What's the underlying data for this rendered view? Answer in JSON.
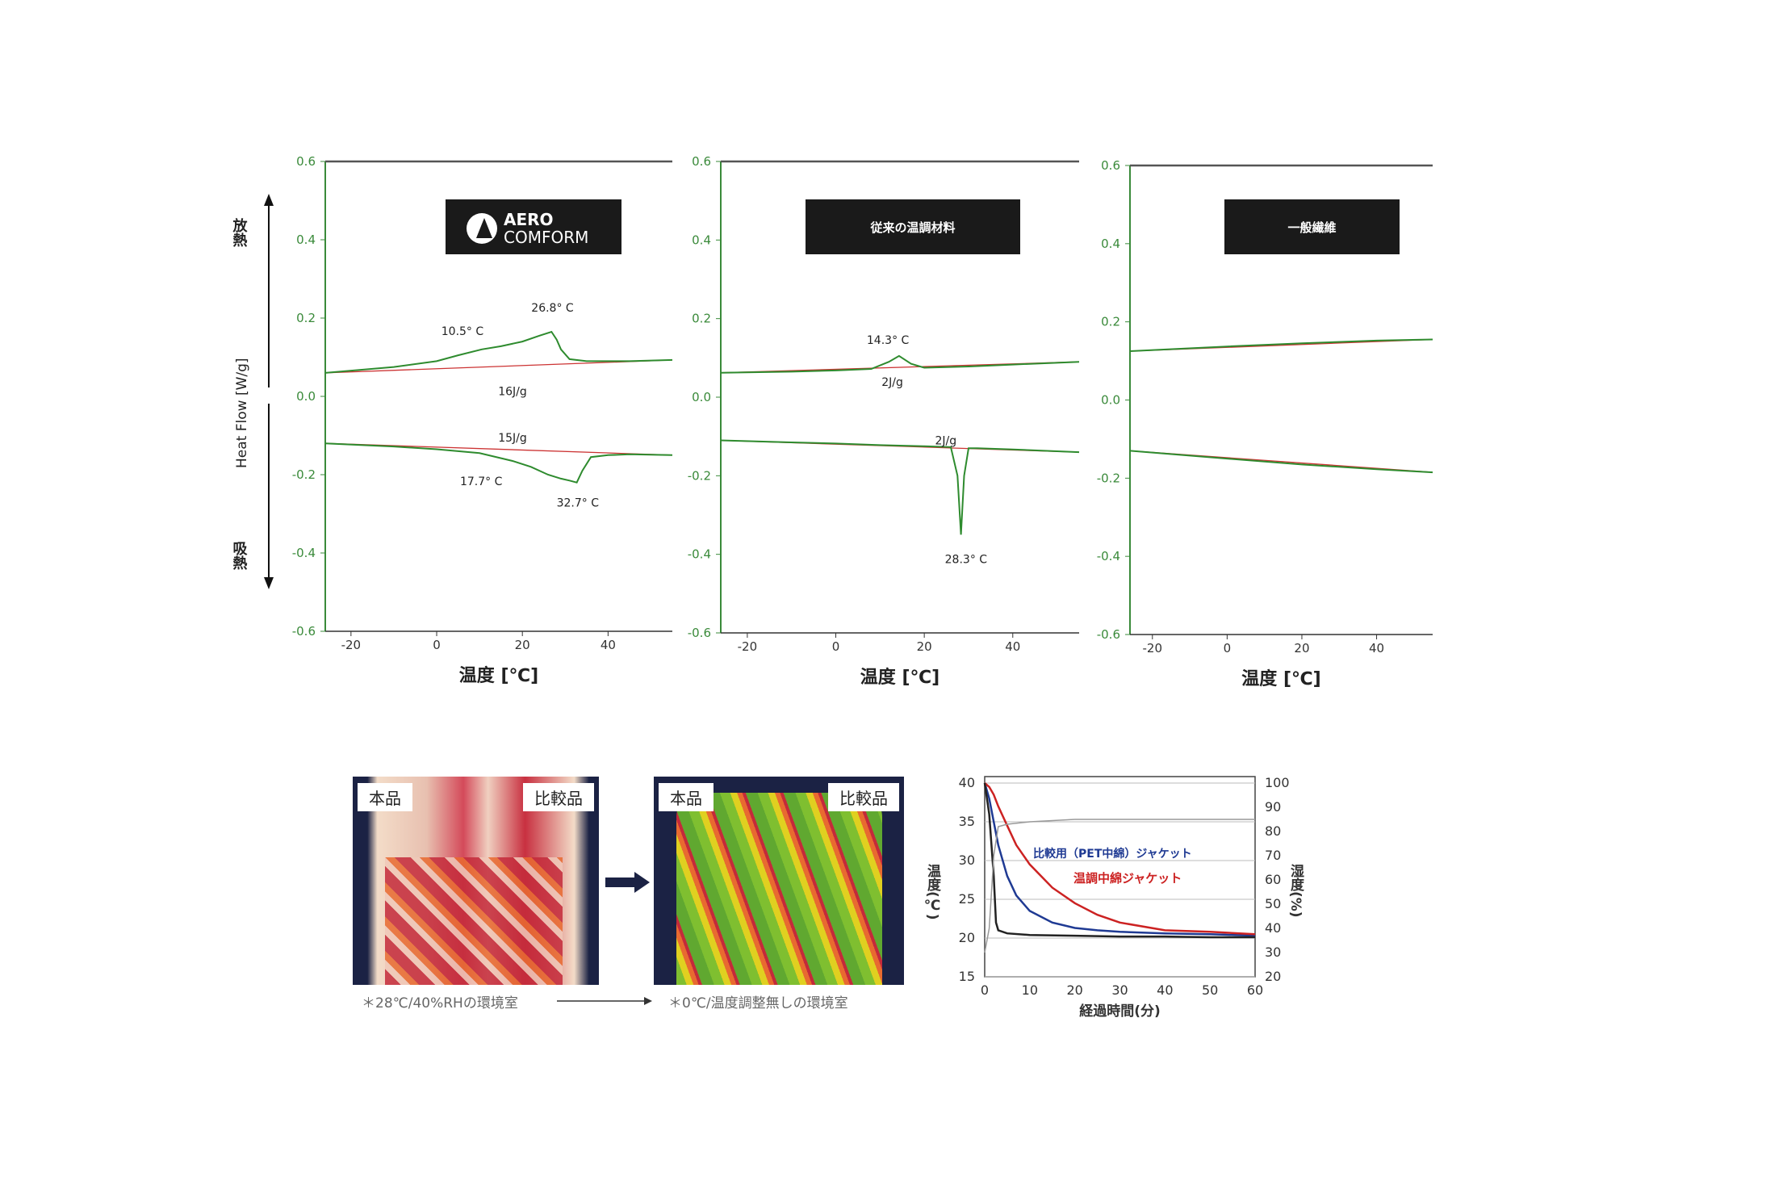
{
  "dsc": {
    "ylabel": "Heat Flow [W/g]",
    "release_label": "放熱",
    "absorb_label": "吸熱",
    "xlabel": "温度 [℃]",
    "yticks": [
      "0.6",
      "0.4",
      "0.2",
      "0.0",
      "-0.2",
      "-0.4",
      "-0.6"
    ],
    "xticks": [
      "-20",
      "0",
      "20",
      "40"
    ],
    "colors": {
      "curve": "#2e8b2e",
      "baseline": "#cc3333",
      "axis": "#3a8a3a"
    }
  },
  "chart_data": [
    {
      "type": "line",
      "tag": "AERO COMFORM",
      "xlabel": "温度 [℃]",
      "ylabel": "Heat Flow [W/g]",
      "ylim": [
        -0.6,
        0.6
      ],
      "xlim": [
        -26,
        55
      ],
      "series": [
        {
          "role": "heating",
          "x": [
            -26,
            -10,
            0,
            5,
            10.5,
            15,
            20,
            24,
            26.8,
            28,
            29,
            31,
            35,
            40,
            45,
            55
          ],
          "y": [
            0.06,
            0.075,
            0.09,
            0.105,
            0.12,
            0.128,
            0.14,
            0.155,
            0.165,
            0.145,
            0.12,
            0.095,
            0.09,
            0.09,
            0.09,
            0.093
          ]
        },
        {
          "role": "cooling",
          "x": [
            -26,
            -10,
            0,
            10,
            17.7,
            22,
            26,
            29,
            31,
            32.7,
            34,
            36,
            40,
            45,
            55
          ],
          "y": [
            -0.12,
            -0.128,
            -0.135,
            -0.145,
            -0.165,
            -0.18,
            -0.2,
            -0.21,
            -0.215,
            -0.22,
            -0.19,
            -0.155,
            -0.15,
            -0.148,
            -0.15
          ]
        }
      ],
      "annotations": [
        "10.5° C",
        "26.8° C",
        "16J/g",
        "15J/g",
        "17.7° C",
        "32.7° C"
      ]
    },
    {
      "type": "line",
      "tag": "従来の温調材料",
      "xlabel": "温度 [℃]",
      "ylim": [
        -0.6,
        0.6
      ],
      "xlim": [
        -26,
        55
      ],
      "series": [
        {
          "role": "heating",
          "x": [
            -26,
            -10,
            0,
            8,
            12,
            14.3,
            17,
            20,
            30,
            40,
            55
          ],
          "y": [
            0.062,
            0.065,
            0.068,
            0.072,
            0.09,
            0.105,
            0.085,
            0.075,
            0.078,
            0.083,
            0.09
          ]
        },
        {
          "role": "cooling",
          "x": [
            -26,
            -10,
            0,
            10,
            20,
            26,
            27.5,
            28.3,
            29,
            30,
            32,
            40,
            55
          ],
          "y": [
            -0.11,
            -0.115,
            -0.118,
            -0.122,
            -0.125,
            -0.127,
            -0.2,
            -0.35,
            -0.2,
            -0.13,
            -0.13,
            -0.133,
            -0.14
          ]
        }
      ],
      "annotations": [
        "14.3° C",
        "2J/g",
        "2J/g",
        "28.3° C"
      ]
    },
    {
      "type": "line",
      "tag": "一般繊維",
      "xlabel": "温度 [℃]",
      "ylim": [
        -0.6,
        0.6
      ],
      "xlim": [
        -26,
        55
      ],
      "series": [
        {
          "role": "heating",
          "x": [
            -26,
            0,
            20,
            40,
            55
          ],
          "y": [
            0.125,
            0.137,
            0.145,
            0.152,
            0.155
          ]
        },
        {
          "role": "cooling",
          "x": [
            -26,
            0,
            20,
            40,
            55
          ],
          "y": [
            -0.13,
            -0.15,
            -0.165,
            -0.177,
            -0.185
          ]
        }
      ],
      "annotations": []
    },
    {
      "type": "line",
      "xlabel": "経過時間(分)",
      "ylabel": "温度(℃)",
      "y2label": "湿度(%)",
      "xlim": [
        0,
        60
      ],
      "ylim": [
        15,
        40
      ],
      "y2lim": [
        20,
        100
      ],
      "xticks": [
        "0",
        "10",
        "20",
        "30",
        "40",
        "50",
        "60"
      ],
      "yticks": [
        "40",
        "35",
        "30",
        "25",
        "20",
        "15"
      ],
      "y2ticks": [
        "100",
        "90",
        "80",
        "70",
        "60",
        "50",
        "40",
        "30",
        "20"
      ],
      "series": [
        {
          "name": "比較用（PET中綿）ジャケット",
          "color": "#1f3a93",
          "x": [
            0,
            1,
            2,
            3,
            5,
            7,
            10,
            15,
            20,
            25,
            30,
            40,
            50,
            60
          ],
          "y": [
            40,
            38,
            35,
            32,
            28,
            25.5,
            23.5,
            22,
            21.3,
            21,
            20.8,
            20.6,
            20.5,
            20.3
          ]
        },
        {
          "name": "温調中綿ジャケット",
          "color": "#cc2222",
          "x": [
            0,
            1,
            2,
            3,
            5,
            7,
            10,
            15,
            20,
            25,
            30,
            40,
            50,
            60
          ],
          "y": [
            40,
            39.5,
            38.5,
            37,
            34.5,
            32,
            29.5,
            26.5,
            24.5,
            23,
            22,
            21,
            20.8,
            20.5
          ]
        },
        {
          "color": "#222222",
          "x": [
            0,
            1,
            2,
            2.5,
            3,
            5,
            10,
            20,
            30,
            40,
            50,
            60
          ],
          "y": [
            40,
            36,
            28,
            22,
            21,
            20.6,
            20.4,
            20.3,
            20.2,
            20.2,
            20.1,
            20.1
          ]
        },
        {
          "color": "#999999",
          "axis": "right",
          "x": [
            0,
            1,
            2,
            3,
            5,
            10,
            20,
            30,
            40,
            50,
            60
          ],
          "y": [
            30,
            40,
            70,
            82,
            83,
            84,
            85,
            85,
            85,
            85,
            85
          ]
        }
      ]
    }
  ],
  "thermo": {
    "left": {
      "label_a": "本品",
      "label_b": "比較品",
      "caption": "＊28℃/40%RHの環境室"
    },
    "right": {
      "label_a": "本品",
      "label_b": "比較品",
      "caption": "＊0℃/温度調整無しの環境室"
    }
  }
}
